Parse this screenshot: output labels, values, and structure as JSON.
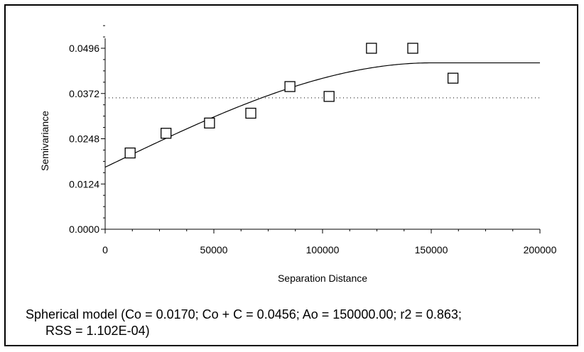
{
  "chart_data": {
    "type": "scatter",
    "xlabel": "Separation Distance",
    "ylabel": "Semivariance",
    "xlim": [
      0,
      200000
    ],
    "ylim": [
      0,
      0.0496
    ],
    "x_ticks": [
      0,
      50000,
      100000,
      150000,
      200000
    ],
    "x_tick_labels": [
      "0",
      "50000",
      "100000",
      "150000",
      "200000"
    ],
    "y_ticks": [
      0,
      0.0124,
      0.0248,
      0.0372,
      0.0496
    ],
    "y_tick_labels": [
      "0.0000",
      "0.0124",
      "0.0248",
      "0.0372",
      "0.0496"
    ],
    "grid": false,
    "points": [
      {
        "x": 11500,
        "y": 0.0209
      },
      {
        "x": 28000,
        "y": 0.0263
      },
      {
        "x": 48000,
        "y": 0.0291
      },
      {
        "x": 67000,
        "y": 0.0318
      },
      {
        "x": 85000,
        "y": 0.0391
      },
      {
        "x": 103000,
        "y": 0.0364
      },
      {
        "x": 122500,
        "y": 0.0496
      },
      {
        "x": 141500,
        "y": 0.0496
      },
      {
        "x": 160000,
        "y": 0.0414
      }
    ],
    "model": {
      "type": "spherical",
      "nugget": 0.017,
      "sill": 0.0456,
      "range": 150000.0
    },
    "reference_line": {
      "y": 0.036,
      "style": "dotted"
    },
    "caption_lines": [
      "Spherical model (Co = 0.0170; Co + C = 0.0456; Ao = 150000.00; r2 = 0.863;",
      "RSS = 1.102E-04)"
    ]
  }
}
